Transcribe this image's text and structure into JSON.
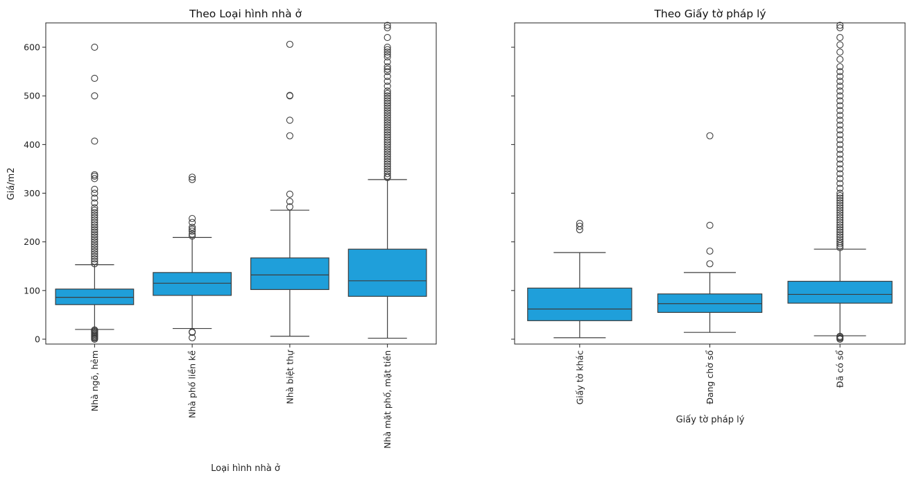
{
  "chart_data": [
    {
      "type": "box",
      "title": "Theo Loại hình nhà ở",
      "xlabel": "Loại hình nhà ở",
      "ylabel": "Giá/m2",
      "ylim": [
        -10,
        650
      ],
      "yticks": [
        "0",
        "100",
        "200",
        "300",
        "400",
        "500",
        "600"
      ],
      "color": "#1f9fda",
      "categories": [
        "Nhà ngõ, hẻm",
        "Nhà phố liền kề",
        "Nhà biệt thự",
        "Nhà mặt phố, mặt tiền"
      ],
      "boxes": [
        {
          "whislo": 20,
          "q1": 71,
          "med": 86,
          "q3": 103,
          "whishi": 153,
          "fliers": [
            0,
            2,
            4,
            6,
            8,
            10,
            12,
            14,
            16,
            18,
            19,
            155,
            160,
            165,
            170,
            175,
            180,
            185,
            190,
            195,
            200,
            205,
            210,
            215,
            220,
            225,
            230,
            235,
            240,
            245,
            250,
            255,
            260,
            265,
            270,
            280,
            290,
            300,
            308,
            330,
            335,
            338,
            407,
            500,
            536,
            600
          ]
        },
        {
          "whislo": 22,
          "q1": 90,
          "med": 115,
          "q3": 137,
          "whishi": 209,
          "fliers": [
            3,
            14,
            15,
            212,
            216,
            222,
            226,
            230,
            240,
            248,
            328,
            333
          ]
        },
        {
          "whislo": 6,
          "q1": 102,
          "med": 132,
          "q3": 167,
          "whishi": 265,
          "fliers": [
            272,
            283,
            298,
            418,
            450,
            500,
            501,
            606
          ]
        },
        {
          "whislo": 2,
          "q1": 88,
          "med": 120,
          "q3": 185,
          "whishi": 328,
          "fliers": [
            332,
            335,
            340,
            345,
            350,
            355,
            360,
            365,
            370,
            375,
            380,
            385,
            390,
            395,
            400,
            405,
            410,
            415,
            420,
            425,
            430,
            435,
            440,
            445,
            450,
            455,
            460,
            465,
            470,
            475,
            480,
            485,
            490,
            495,
            500,
            505,
            510,
            520,
            530,
            540,
            550,
            555,
            560,
            570,
            580,
            585,
            590,
            595,
            600,
            620,
            640,
            645
          ]
        }
      ]
    },
    {
      "type": "box",
      "title": "Theo Giấy tờ pháp lý",
      "xlabel": "Giấy tờ pháp lý",
      "ylabel": "",
      "ylim": [
        -10,
        650
      ],
      "color": "#1f9fda",
      "categories": [
        "Giấy tờ khác",
        "Đang chờ sổ",
        "Đã có sổ"
      ],
      "boxes": [
        {
          "whislo": 3,
          "q1": 38,
          "med": 62,
          "q3": 105,
          "whishi": 178,
          "fliers": [
            225,
            232,
            238
          ]
        },
        {
          "whislo": 14,
          "q1": 55,
          "med": 73,
          "q3": 93,
          "whishi": 137,
          "fliers": [
            155,
            181,
            234,
            418
          ]
        },
        {
          "whislo": 7,
          "q1": 74,
          "med": 92,
          "q3": 119,
          "whishi": 185,
          "fliers": [
            0,
            2,
            4,
            6,
            188,
            192,
            196,
            200,
            205,
            210,
            215,
            220,
            225,
            230,
            235,
            240,
            245,
            250,
            255,
            260,
            265,
            270,
            275,
            280,
            285,
            290,
            295,
            300,
            310,
            320,
            330,
            340,
            350,
            360,
            370,
            380,
            390,
            400,
            410,
            420,
            430,
            440,
            450,
            460,
            470,
            480,
            490,
            500,
            510,
            520,
            530,
            540,
            550,
            560,
            575,
            590,
            605,
            620,
            640,
            645
          ]
        }
      ]
    }
  ]
}
